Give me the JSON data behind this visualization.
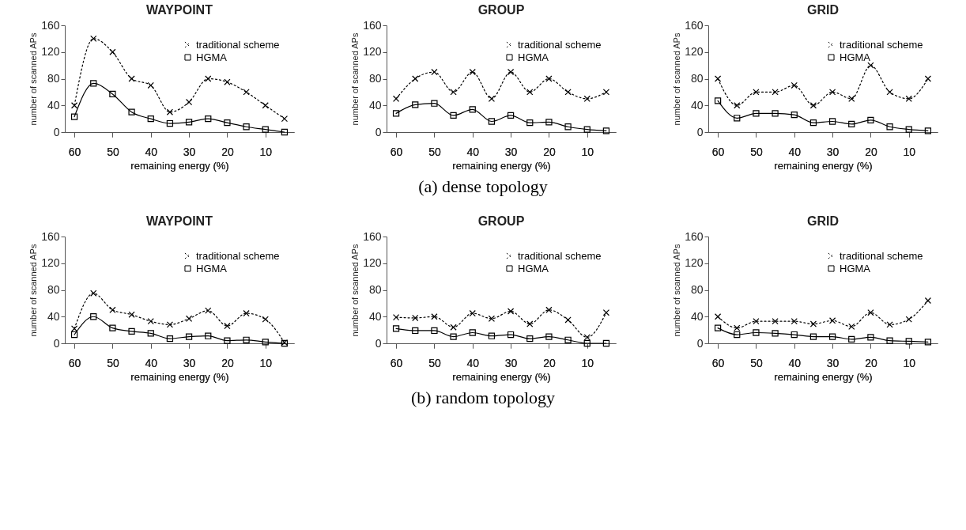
{
  "chart_data": [
    {
      "type": "line",
      "title": "WAYPOINT",
      "xlabel": "remaining energy (%)",
      "ylabel": "number of scanned APs",
      "x": [
        60,
        55,
        50,
        45,
        40,
        35,
        30,
        25,
        20,
        15,
        10,
        5
      ],
      "xlim": [
        62.5,
        2.5
      ],
      "xticks": [
        60,
        50,
        40,
        30,
        20,
        10
      ],
      "ylim": [
        0,
        160
      ],
      "yticks": [
        0,
        40,
        80,
        120,
        160
      ],
      "legend": "top right",
      "series": [
        {
          "name": "traditional scheme",
          "color": "#000000",
          "line_style": "dotted",
          "marker": "cross",
          "values": [
            40,
            140,
            120,
            80,
            70,
            30,
            45,
            80,
            75,
            60,
            40,
            20
          ]
        },
        {
          "name": "HGMA",
          "color": "#000000",
          "line_style": "solid",
          "marker": "square",
          "values": [
            23,
            73,
            57,
            30,
            20,
            13,
            15,
            20,
            14,
            8,
            4,
            0
          ]
        }
      ]
    },
    {
      "type": "line",
      "title": "GROUP",
      "xlabel": "remaining energy (%)",
      "ylabel": "number of scanned APs",
      "x": [
        60,
        55,
        50,
        45,
        40,
        35,
        30,
        25,
        20,
        15,
        10,
        5
      ],
      "xlim": [
        62.5,
        2.5
      ],
      "xticks": [
        60,
        50,
        40,
        30,
        20,
        10
      ],
      "ylim": [
        0,
        160
      ],
      "yticks": [
        0,
        40,
        80,
        120,
        160
      ],
      "legend": "top right",
      "annotations": [
        "(a) dense topology"
      ],
      "series": [
        {
          "name": "traditional scheme",
          "color": "#000000",
          "line_style": "dotted",
          "marker": "cross",
          "values": [
            50,
            80,
            90,
            60,
            90,
            50,
            90,
            60,
            80,
            60,
            50,
            60
          ]
        },
        {
          "name": "HGMA",
          "color": "#000000",
          "line_style": "solid",
          "marker": "square",
          "values": [
            28,
            41,
            43,
            25,
            34,
            16,
            25,
            14,
            15,
            8,
            4,
            2
          ]
        }
      ]
    },
    {
      "type": "line",
      "title": "GRID",
      "xlabel": "remaining energy (%)",
      "ylabel": "number of scanned APs",
      "x": [
        60,
        55,
        50,
        45,
        40,
        35,
        30,
        25,
        20,
        15,
        10,
        5
      ],
      "xlim": [
        62.5,
        2.5
      ],
      "xticks": [
        60,
        50,
        40,
        30,
        20,
        10
      ],
      "ylim": [
        0,
        160
      ],
      "yticks": [
        0,
        40,
        80,
        120,
        160
      ],
      "legend": "top right",
      "series": [
        {
          "name": "traditional scheme",
          "color": "#000000",
          "line_style": "dotted",
          "marker": "cross",
          "values": [
            80,
            40,
            60,
            60,
            70,
            40,
            60,
            50,
            100,
            60,
            50,
            80
          ]
        },
        {
          "name": "HGMA",
          "color": "#000000",
          "line_style": "solid",
          "marker": "square",
          "values": [
            47,
            21,
            28,
            28,
            26,
            14,
            16,
            12,
            18,
            8,
            4,
            2
          ]
        }
      ]
    },
    {
      "type": "line",
      "title": "WAYPOINT",
      "xlabel": "remaining energy (%)",
      "ylabel": "number of scanned APs",
      "x": [
        60,
        55,
        50,
        45,
        40,
        35,
        30,
        25,
        20,
        15,
        10,
        5
      ],
      "xlim": [
        62.5,
        2.5
      ],
      "xticks": [
        60,
        50,
        40,
        30,
        20,
        10
      ],
      "ylim": [
        0,
        160
      ],
      "yticks": [
        0,
        40,
        80,
        120,
        160
      ],
      "legend": "top right",
      "series": [
        {
          "name": "traditional scheme",
          "color": "#000000",
          "line_style": "dotted",
          "marker": "cross",
          "values": [
            22,
            75,
            50,
            43,
            33,
            28,
            37,
            49,
            26,
            45,
            36,
            1
          ]
        },
        {
          "name": "HGMA",
          "color": "#000000",
          "line_style": "solid",
          "marker": "square",
          "values": [
            13,
            40,
            23,
            18,
            15,
            7,
            10,
            11,
            4,
            5,
            2,
            0
          ]
        }
      ]
    },
    {
      "type": "line",
      "title": "GROUP",
      "xlabel": "remaining energy (%)",
      "ylabel": "number of scanned APs",
      "x": [
        60,
        55,
        50,
        45,
        40,
        35,
        30,
        25,
        20,
        15,
        10,
        5
      ],
      "xlim": [
        62.5,
        2.5
      ],
      "xticks": [
        60,
        50,
        40,
        30,
        20,
        10
      ],
      "ylim": [
        0,
        160
      ],
      "yticks": [
        0,
        40,
        80,
        120,
        160
      ],
      "legend": "top right",
      "annotations": [
        "(b) random topology"
      ],
      "series": [
        {
          "name": "traditional scheme",
          "color": "#000000",
          "line_style": "dotted",
          "marker": "cross",
          "values": [
            39,
            38,
            40,
            24,
            45,
            37,
            48,
            29,
            50,
            35,
            9,
            46
          ]
        },
        {
          "name": "HGMA",
          "color": "#000000",
          "line_style": "solid",
          "marker": "square",
          "values": [
            22,
            19,
            19,
            10,
            16,
            11,
            13,
            7,
            10,
            5,
            0,
            0
          ]
        }
      ]
    },
    {
      "type": "line",
      "title": "GRID",
      "xlabel": "remaining energy (%)",
      "ylabel": "number of scanned APs",
      "x": [
        60,
        55,
        50,
        45,
        40,
        35,
        30,
        25,
        20,
        15,
        10,
        5
      ],
      "xlim": [
        62.5,
        2.5
      ],
      "xticks": [
        60,
        50,
        40,
        30,
        20,
        10
      ],
      "ylim": [
        0,
        160
      ],
      "yticks": [
        0,
        40,
        80,
        120,
        160
      ],
      "legend": "top right",
      "series": [
        {
          "name": "traditional scheme",
          "color": "#000000",
          "line_style": "dotted",
          "marker": "cross",
          "values": [
            40,
            23,
            33,
            33,
            33,
            29,
            34,
            25,
            46,
            28,
            36,
            64
          ]
        },
        {
          "name": "HGMA",
          "color": "#000000",
          "line_style": "solid",
          "marker": "square",
          "values": [
            23,
            13,
            16,
            15,
            13,
            10,
            10,
            6,
            9,
            4,
            3,
            2
          ]
        }
      ]
    }
  ]
}
